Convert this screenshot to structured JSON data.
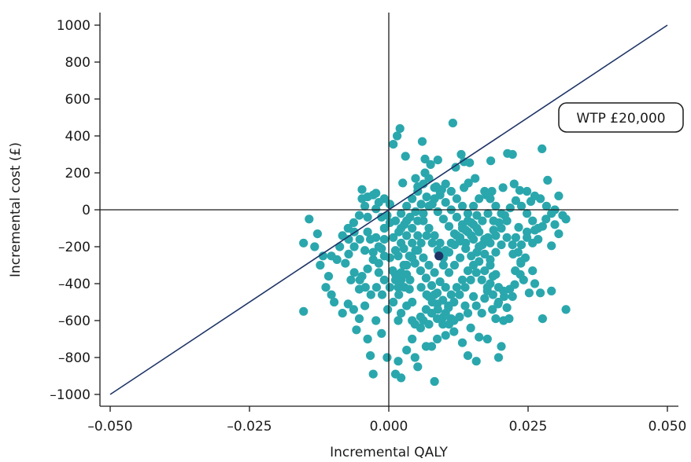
{
  "chart_data": {
    "type": "scatter",
    "xlabel": "Incremental QALY",
    "ylabel": "Incremental cost (£)",
    "xlim": [
      -0.052,
      0.052
    ],
    "ylim": [
      -1060,
      1060
    ],
    "x_ticks": [
      -0.05,
      -0.025,
      0.0,
      0.025,
      0.05
    ],
    "x_tick_labels": [
      "–0.050",
      "–0.025",
      "0.000",
      "0.025",
      "0.050"
    ],
    "y_ticks": [
      1000,
      800,
      600,
      400,
      200,
      0,
      -200,
      -400,
      -600,
      -800,
      -1000
    ],
    "y_tick_labels": [
      "1000",
      "800",
      "600",
      "400",
      "200",
      "0",
      "–200",
      "–400",
      "–600",
      "–800",
      "–1000"
    ],
    "wtp_line": {
      "label": "WTP £20,000",
      "slope": 20000,
      "x_range": [
        -0.05,
        0.05
      ]
    },
    "mean_point": {
      "x": 0.009,
      "y": -250
    },
    "colors": {
      "points": "#2aa7ad",
      "mean_point": "#1e3466",
      "wtp_line": "#1e3466",
      "axes": "#1a1a1a"
    },
    "points": [
      [
        0.0115,
        470
      ],
      [
        0.002,
        440
      ],
      [
        0.0015,
        400
      ],
      [
        0.0008,
        355
      ],
      [
        0.006,
        370
      ],
      [
        0.0065,
        275
      ],
      [
        0.0088,
        270
      ],
      [
        0.013,
        300
      ],
      [
        0.0135,
        260
      ],
      [
        0.0145,
        255
      ],
      [
        0.0075,
        245
      ],
      [
        0.003,
        290
      ],
      [
        0.012,
        230
      ],
      [
        0.0155,
        170
      ],
      [
        0.0143,
        145
      ],
      [
        0.0183,
        265
      ],
      [
        0.0213,
        305
      ],
      [
        0.0222,
        300
      ],
      [
        0.0275,
        330
      ],
      [
        0.0285,
        160
      ],
      [
        0.0065,
        200
      ],
      [
        0.0048,
        170
      ],
      [
        0.0052,
        125
      ],
      [
        0.0025,
        145
      ],
      [
        0.0085,
        125
      ],
      [
        0.0135,
        120
      ],
      [
        0.0095,
        110
      ],
      [
        0.0175,
        80
      ],
      [
        0.0185,
        100
      ],
      [
        0.0205,
        120
      ],
      [
        0.0225,
        140
      ],
      [
        0.0235,
        105
      ],
      [
        0.0248,
        100
      ],
      [
        0.0262,
        75
      ],
      [
        0.0272,
        60
      ],
      [
        0.0305,
        75
      ],
      [
        0.0255,
        45
      ],
      [
        0.0283,
        20
      ],
      [
        0.0298,
        0
      ],
      [
        0.0312,
        -30
      ],
      [
        0.0318,
        -50
      ],
      [
        0.0298,
        -80
      ],
      [
        0.0305,
        -130
      ],
      [
        0.0292,
        -195
      ],
      [
        0.0276,
        -90
      ],
      [
        0.0262,
        -110
      ],
      [
        0.0248,
        -120
      ],
      [
        0.0233,
        -95
      ],
      [
        0.0245,
        -260
      ],
      [
        0.0237,
        -280
      ],
      [
        0.0223,
        -240
      ],
      [
        0.0258,
        -330
      ],
      [
        0.0262,
        -400
      ],
      [
        0.0252,
        -450
      ],
      [
        0.0272,
        -450
      ],
      [
        0.0318,
        -540
      ],
      [
        0.0292,
        -440
      ],
      [
        0.0276,
        -590
      ],
      [
        0.0242,
        -380
      ],
      [
        0.0236,
        -350
      ],
      [
        0.0226,
        -405
      ],
      [
        0.0222,
        -470
      ],
      [
        0.0212,
        -530
      ],
      [
        0.0216,
        -590
      ],
      [
        0.0206,
        -600
      ],
      [
        0.0192,
        -590
      ],
      [
        0.0186,
        -540
      ],
      [
        0.0196,
        -510
      ],
      [
        0.0206,
        -440
      ],
      [
        0.0202,
        -740
      ],
      [
        0.0197,
        -800
      ],
      [
        0.0177,
        -700
      ],
      [
        0.0162,
        -690
      ],
      [
        0.0147,
        -640
      ],
      [
        0.0157,
        -820
      ],
      [
        0.0142,
        -790
      ],
      [
        0.0132,
        -720
      ],
      [
        0.0117,
        -660
      ],
      [
        0.0112,
        -590
      ],
      [
        0.0102,
        -560
      ],
      [
        0.0107,
        -520
      ],
      [
        0.0087,
        -510
      ],
      [
        0.0082,
        -460
      ],
      [
        0.0072,
        -470
      ],
      [
        0.0067,
        -540
      ],
      [
        0.0057,
        -580
      ],
      [
        0.0047,
        -620
      ],
      [
        0.0042,
        -700
      ],
      [
        0.0032,
        -760
      ],
      [
        0.0047,
        -800
      ],
      [
        0.0052,
        -850
      ],
      [
        0.0087,
        -700
      ],
      [
        0.0077,
        -740
      ],
      [
        0.0067,
        -740
      ],
      [
        0.0082,
        -930
      ],
      [
        0.0022,
        -910
      ],
      [
        0.0017,
        -820
      ],
      [
        0.0012,
        -890
      ],
      [
        -0.0003,
        -800
      ],
      [
        -0.0028,
        -890
      ],
      [
        -0.0033,
        -790
      ],
      [
        -0.0013,
        -670
      ],
      [
        -0.0023,
        -600
      ],
      [
        -0.0038,
        -700
      ],
      [
        -0.0058,
        -650
      ],
      [
        -0.0053,
        -590
      ],
      [
        -0.0043,
        -520
      ],
      [
        -0.0063,
        -540
      ],
      [
        -0.0073,
        -510
      ],
      [
        -0.0083,
        -560
      ],
      [
        -0.0098,
        -500
      ],
      [
        -0.0103,
        -460
      ],
      [
        -0.0113,
        -420
      ],
      [
        -0.0153,
        -550
      ],
      [
        -0.0108,
        -360
      ],
      [
        -0.0123,
        -300
      ],
      [
        -0.0118,
        -250
      ],
      [
        -0.0133,
        -200
      ],
      [
        -0.0128,
        -130
      ],
      [
        -0.0153,
        -180
      ],
      [
        -0.0143,
        -50
      ],
      [
        -0.0103,
        -250
      ],
      [
        -0.0093,
        -270
      ],
      [
        -0.0088,
        -200
      ],
      [
        -0.0083,
        -140
      ],
      [
        -0.0078,
        -290
      ],
      [
        -0.0068,
        -380
      ],
      [
        -0.0053,
        -430
      ],
      [
        -0.0048,
        -360
      ],
      [
        -0.0038,
        -320
      ],
      [
        -0.0028,
        -270
      ],
      [
        -0.0018,
        -290
      ],
      [
        -0.0023,
        -150
      ],
      [
        -0.0033,
        -160
      ],
      [
        -0.0043,
        -220
      ],
      [
        -0.0013,
        -210
      ],
      [
        -0.0008,
        -100
      ],
      [
        -0.0003,
        -30
      ],
      [
        0.0002,
        -70
      ],
      [
        0.0002,
        30
      ],
      [
        -0.0008,
        60
      ],
      [
        -0.0018,
        40
      ],
      [
        -0.0023,
        90
      ],
      [
        -0.0038,
        70
      ],
      [
        -0.0048,
        60
      ],
      [
        -0.0043,
        20
      ],
      [
        -0.0038,
        -40
      ],
      [
        -0.0053,
        -30
      ],
      [
        -0.0063,
        -70
      ],
      [
        -0.0073,
        -100
      ],
      [
        -0.0023,
        5
      ],
      [
        -0.0013,
        -40
      ],
      [
        -0.0048,
        110
      ],
      [
        -0.0028,
        80
      ],
      [
        0.0012,
        -350
      ],
      [
        0.0017,
        -420
      ],
      [
        0.0022,
        -380
      ],
      [
        0.0027,
        -300
      ],
      [
        0.0032,
        -350
      ],
      [
        0.0037,
        -430
      ],
      [
        0.0042,
        -500
      ],
      [
        0.0032,
        -520
      ],
      [
        0.0022,
        -560
      ],
      [
        0.0017,
        -600
      ],
      [
        0.0042,
        -600
      ],
      [
        0.0057,
        -640
      ],
      [
        0.0062,
        -600
      ],
      [
        0.0072,
        -620
      ],
      [
        0.0077,
        -560
      ],
      [
        0.0087,
        -590
      ],
      [
        0.0097,
        -620
      ],
      [
        0.0102,
        -680
      ],
      [
        0.0117,
        -600
      ],
      [
        0.0127,
        -580
      ],
      [
        0.0137,
        -520
      ],
      [
        0.0142,
        -560
      ],
      [
        0.0152,
        -470
      ],
      [
        0.0157,
        -520
      ],
      [
        0.0167,
        -560
      ],
      [
        0.0172,
        -480
      ],
      [
        0.0177,
        -440
      ],
      [
        0.0182,
        -400
      ],
      [
        0.0187,
        -360
      ],
      [
        0.0197,
        -420
      ],
      [
        0.0192,
        -350
      ],
      [
        0.0182,
        -300
      ],
      [
        0.0172,
        -330
      ],
      [
        0.0162,
        -280
      ],
      [
        0.0152,
        -300
      ],
      [
        0.0142,
        -330
      ],
      [
        0.0132,
        -380
      ],
      [
        0.0122,
        -420
      ],
      [
        0.0112,
        -460
      ],
      [
        0.0102,
        -420
      ],
      [
        0.0092,
        -390
      ],
      [
        0.0082,
        -340
      ],
      [
        0.0072,
        -300
      ],
      [
        0.0062,
        -260
      ],
      [
        0.0052,
        -220
      ],
      [
        0.0042,
        -180
      ],
      [
        0.0032,
        -140
      ],
      [
        0.0022,
        -100
      ],
      [
        0.0012,
        -60
      ],
      [
        0.0022,
        -20
      ],
      [
        0.0032,
        20
      ],
      [
        0.0042,
        60
      ],
      [
        0.0052,
        100
      ],
      [
        0.0062,
        140
      ],
      [
        0.0072,
        170
      ],
      [
        0.0082,
        120
      ],
      [
        0.0092,
        80
      ],
      [
        0.0102,
        40
      ],
      [
        0.0112,
        0
      ],
      [
        0.0122,
        -40
      ],
      [
        0.0132,
        -80
      ],
      [
        0.0142,
        -120
      ],
      [
        0.0152,
        -160
      ],
      [
        0.0162,
        -200
      ],
      [
        0.0172,
        -240
      ],
      [
        0.0182,
        -180
      ],
      [
        0.0192,
        -140
      ],
      [
        0.0202,
        -100
      ],
      [
        0.0212,
        -60
      ],
      [
        0.0202,
        -20
      ],
      [
        0.0192,
        20
      ],
      [
        0.0182,
        60
      ],
      [
        0.0172,
        100
      ],
      [
        0.0162,
        60
      ],
      [
        0.0152,
        20
      ],
      [
        0.0142,
        -20
      ],
      [
        0.0132,
        20
      ],
      [
        0.0122,
        60
      ],
      [
        0.0112,
        100
      ],
      [
        0.0102,
        140
      ],
      [
        0.0092,
        100
      ],
      [
        0.0082,
        60
      ],
      [
        0.0072,
        20
      ],
      [
        0.0062,
        -20
      ],
      [
        0.0052,
        -60
      ],
      [
        0.0042,
        -100
      ],
      [
        0.0032,
        -60
      ],
      [
        0.0022,
        -180
      ],
      [
        0.0012,
        -220
      ],
      [
        0.0002,
        -260
      ],
      [
        0.0007,
        -330
      ],
      [
        0.0017,
        -250
      ],
      [
        0.0027,
        -210
      ],
      [
        0.0037,
        -250
      ],
      [
        0.0047,
        -290
      ],
      [
        0.0057,
        -330
      ],
      [
        0.0067,
        -370
      ],
      [
        0.0077,
        -410
      ],
      [
        0.0087,
        -450
      ],
      [
        0.0097,
        -490
      ],
      [
        0.0107,
        -530
      ],
      [
        0.0117,
        -500
      ],
      [
        0.0127,
        -460
      ],
      [
        0.0137,
        -420
      ],
      [
        0.0147,
        -380
      ],
      [
        0.0157,
        -340
      ],
      [
        0.0167,
        -380
      ],
      [
        0.0177,
        -420
      ],
      [
        0.0187,
        -460
      ],
      [
        0.0197,
        -500
      ],
      [
        0.0207,
        -470
      ],
      [
        0.0217,
        -430
      ],
      [
        0.0227,
        -330
      ],
      [
        0.0237,
        -290
      ],
      [
        0.0232,
        -230
      ],
      [
        0.0222,
        -190
      ],
      [
        0.0212,
        -150
      ],
      [
        0.0202,
        -190
      ],
      [
        0.0192,
        -230
      ],
      [
        0.0182,
        -270
      ],
      [
        0.0172,
        -160
      ],
      [
        0.0162,
        -120
      ],
      [
        0.0152,
        -80
      ],
      [
        0.0142,
        -60
      ],
      [
        0.0132,
        -100
      ],
      [
        0.0122,
        -140
      ],
      [
        0.0112,
        -180
      ],
      [
        0.0102,
        -220
      ],
      [
        0.0092,
        -180
      ],
      [
        0.0082,
        -140
      ],
      [
        0.0072,
        -100
      ],
      [
        0.0062,
        -60
      ],
      [
        0.0052,
        -140
      ],
      [
        0.0042,
        -260
      ],
      [
        0.0032,
        -300
      ],
      [
        0.0022,
        -340
      ],
      [
        0.0012,
        -380
      ],
      [
        0.0002,
        -420
      ],
      [
        -0.0008,
        -380
      ],
      [
        -0.0018,
        -340
      ],
      [
        -0.0008,
        -250
      ],
      [
        -0.0018,
        -200
      ],
      [
        -0.0028,
        -230
      ],
      [
        -0.0038,
        -120
      ],
      [
        -0.0008,
        -160
      ],
      [
        0.0008,
        -150
      ],
      [
        0.0018,
        -120
      ],
      [
        0.0028,
        -80
      ],
      [
        0.0038,
        -40
      ],
      [
        0.0048,
        -10
      ],
      [
        0.0058,
        30
      ],
      [
        0.0068,
        70
      ],
      [
        0.0078,
        30
      ],
      [
        0.0088,
        -10
      ],
      [
        0.0098,
        -50
      ],
      [
        0.0108,
        -90
      ],
      [
        0.0118,
        -130
      ],
      [
        0.0128,
        -170
      ],
      [
        0.0138,
        -210
      ],
      [
        0.0148,
        -250
      ],
      [
        0.0158,
        -230
      ],
      [
        0.0168,
        -190
      ],
      [
        0.0178,
        -150
      ],
      [
        0.0188,
        -110
      ],
      [
        0.0198,
        -70
      ],
      [
        0.0208,
        -30
      ],
      [
        0.0218,
        10
      ],
      [
        0.0228,
        50
      ],
      [
        0.0238,
        20
      ],
      [
        0.0248,
        -20
      ],
      [
        0.0258,
        -60
      ],
      [
        0.0268,
        -100
      ],
      [
        0.0098,
        -300
      ],
      [
        0.0108,
        -340
      ],
      [
        0.0118,
        -300
      ],
      [
        0.0128,
        -260
      ],
      [
        0.0138,
        -180
      ],
      [
        0.0148,
        -140
      ],
      [
        0.0158,
        -100
      ],
      [
        0.0168,
        -60
      ],
      [
        0.0178,
        -20
      ],
      [
        0.0188,
        -60
      ],
      [
        0.0108,
        -230
      ],
      [
        0.0118,
        -190
      ],
      [
        0.0128,
        -150
      ],
      [
        0.0138,
        -110
      ],
      [
        0.0148,
        -70
      ],
      [
        0.0158,
        -30
      ],
      [
        0.0068,
        -140
      ],
      [
        0.0078,
        -180
      ],
      [
        0.0088,
        -220
      ],
      [
        0.0098,
        -260
      ],
      [
        0.0058,
        -180
      ],
      [
        0.0048,
        -220
      ],
      [
        0.0058,
        -420
      ],
      [
        0.0068,
        -460
      ],
      [
        0.0078,
        -500
      ],
      [
        0.0088,
        -540
      ],
      [
        0.0098,
        -580
      ],
      [
        0.0108,
        -620
      ],
      [
        0.0038,
        -380
      ],
      [
        0.0028,
        -420
      ],
      [
        0.0018,
        -460
      ],
      [
        0.0008,
        -500
      ],
      [
        -0.0002,
        -540
      ],
      [
        -0.0012,
        -460
      ],
      [
        -0.0022,
        -420
      ],
      [
        -0.0032,
        -460
      ],
      [
        -0.0042,
        -420
      ],
      [
        -0.0052,
        -380
      ],
      [
        -0.0062,
        -340
      ],
      [
        -0.0072,
        -240
      ],
      [
        -0.0062,
        -200
      ],
      [
        -0.0052,
        -160
      ],
      [
        -0.0062,
        -120
      ],
      [
        -0.0072,
        -160
      ],
      [
        0.0228,
        -150
      ],
      [
        0.0238,
        -190
      ],
      [
        0.0248,
        -150
      ],
      [
        0.0258,
        -180
      ],
      [
        0.0268,
        -160
      ],
      [
        0.0282,
        -50
      ],
      [
        0.0292,
        -20
      ]
    ]
  }
}
